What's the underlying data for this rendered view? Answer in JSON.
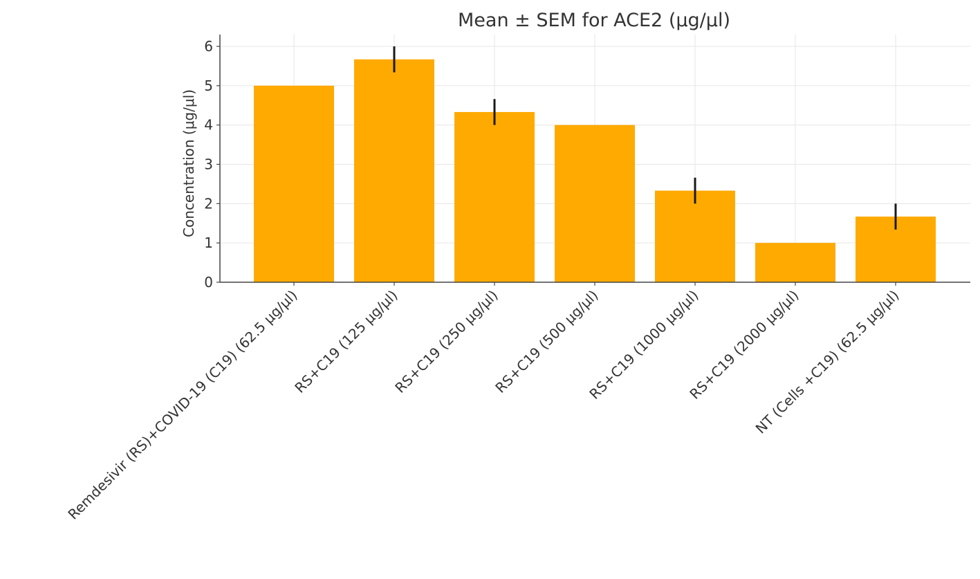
{
  "chart_data": {
    "type": "bar",
    "title": "Mean ± SEM for ACE2 (μg/μl)",
    "xlabel": "",
    "ylabel": "Concentration (μg/μl)",
    "ylim": [
      0,
      6.3
    ],
    "yticks": [
      0,
      1,
      2,
      3,
      4,
      5,
      6
    ],
    "grid": true,
    "categories": [
      "Remdesivir (RS)+COVID-19  (C19)  (62.5 μg/μl)",
      "RS+C19  (125 μg/μl)",
      "RS+C19 (250 μg/μl)",
      "RS+C19 (500 μg/μl)",
      "RS+C19 (1000 μg/μl)",
      "RS+C19 (2000 μg/μl)",
      "NT (Cells +C19) (62.5 μg/μl)"
    ],
    "values": [
      5.0,
      5.67,
      4.33,
      4.0,
      2.33,
      1.0,
      1.67
    ],
    "errors": [
      0,
      0.33,
      0.33,
      0,
      0.33,
      0,
      0.33
    ],
    "bar_color": "#FFAA00",
    "error_color": "#1a1a1a"
  }
}
